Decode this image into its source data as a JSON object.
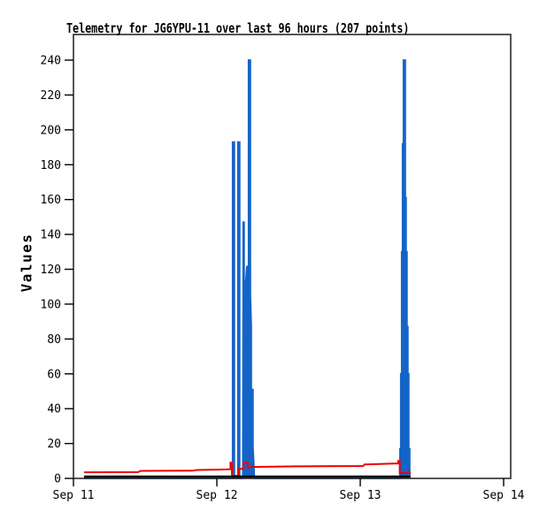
{
  "title": "Telemetry for JG6YPU-11 over last 96 hours (207 points)",
  "colors": {
    "background": "#ffffff",
    "frame": "#2b2b2b",
    "tick": "#000000",
    "series_blue": "#1464C8",
    "series_red": "#EE0000",
    "series_black": "#000000"
  },
  "chart_data": {
    "type": "line",
    "title": "Telemetry for JG6YPU-11 over last 96 hours (207 points)",
    "xlabel": "",
    "ylabel": "Values",
    "ylim": [
      0,
      240
    ],
    "y_ticks": [
      0,
      20,
      40,
      60,
      80,
      100,
      120,
      140,
      160,
      180,
      200,
      220,
      240
    ],
    "x_ticks": [
      {
        "label": "Sep 11",
        "day": 0
      },
      {
        "label": "Sep 12",
        "day": 1
      },
      {
        "label": "Sep 13",
        "day": 2
      },
      {
        "label": "Sep 14",
        "day": 3
      }
    ],
    "x_domain_days": [
      0,
      3.049
    ],
    "x_unit": "days since Sep 11 (date tick marks)",
    "grid": false,
    "legend": "none",
    "series": [
      {
        "name": "telemetry-spikes-blue",
        "color": "#1464C8",
        "width": 1.8,
        "fill": true,
        "points": [
          [
            0.074,
            0
          ],
          [
            1.104,
            0
          ],
          [
            1.11,
            0
          ],
          [
            1.11,
            193
          ],
          [
            1.122,
            193
          ],
          [
            1.122,
            0
          ],
          [
            1.147,
            0
          ],
          [
            1.147,
            193
          ],
          [
            1.159,
            193
          ],
          [
            1.159,
            0
          ],
          [
            1.181,
            0
          ],
          [
            1.184,
            147
          ],
          [
            1.19,
            147
          ],
          [
            1.19,
            113
          ],
          [
            1.196,
            113
          ],
          [
            1.196,
            87
          ],
          [
            1.202,
            113
          ],
          [
            1.209,
            122
          ],
          [
            1.215,
            113
          ],
          [
            1.221,
            113
          ],
          [
            1.221,
            240
          ],
          [
            1.234,
            240
          ],
          [
            1.234,
            105
          ],
          [
            1.24,
            87
          ],
          [
            1.24,
            51
          ],
          [
            1.252,
            51
          ],
          [
            1.252,
            18
          ],
          [
            1.258,
            8
          ],
          [
            1.262,
            0
          ],
          [
            2.271,
            0
          ],
          [
            2.277,
            0
          ],
          [
            2.277,
            17
          ],
          [
            2.283,
            17
          ],
          [
            2.283,
            60
          ],
          [
            2.289,
            60
          ],
          [
            2.289,
            130
          ],
          [
            2.295,
            130
          ],
          [
            2.295,
            192
          ],
          [
            2.301,
            192
          ],
          [
            2.301,
            240
          ],
          [
            2.314,
            240
          ],
          [
            2.314,
            161
          ],
          [
            2.32,
            161
          ],
          [
            2.32,
            130
          ],
          [
            2.326,
            130
          ],
          [
            2.326,
            87
          ],
          [
            2.332,
            87
          ],
          [
            2.332,
            60
          ],
          [
            2.338,
            60
          ],
          [
            2.338,
            17
          ],
          [
            2.345,
            17
          ],
          [
            2.345,
            0
          ]
        ]
      },
      {
        "name": "telemetry-red",
        "color": "#EE0000",
        "width": 2,
        "fill": false,
        "points": [
          [
            0.074,
            3.5
          ],
          [
            0.45,
            3.6
          ],
          [
            0.47,
            4.3
          ],
          [
            0.83,
            4.4
          ],
          [
            0.86,
            4.8
          ],
          [
            1.07,
            5.2
          ],
          [
            1.095,
            5.3
          ],
          [
            1.095,
            9.0
          ],
          [
            1.105,
            9.0
          ],
          [
            1.105,
            1.5
          ],
          [
            1.15,
            1.5
          ],
          [
            1.15,
            5.5
          ],
          [
            1.185,
            5.5
          ],
          [
            1.185,
            9.0
          ],
          [
            1.215,
            9.0
          ],
          [
            1.215,
            6.3
          ],
          [
            1.27,
            6.6
          ],
          [
            1.55,
            6.9
          ],
          [
            2.02,
            7.1
          ],
          [
            2.03,
            8.0
          ],
          [
            2.25,
            8.6
          ],
          [
            2.265,
            8.6
          ],
          [
            2.265,
            10.0
          ],
          [
            2.275,
            10.0
          ],
          [
            2.275,
            3.0
          ],
          [
            2.33,
            3.0
          ],
          [
            2.34,
            3.8
          ],
          [
            2.35,
            2.5
          ]
        ]
      },
      {
        "name": "telemetry-black",
        "color": "#000000",
        "width": 2.5,
        "fill": false,
        "points": [
          [
            0.074,
            1.0
          ],
          [
            2.35,
            1.0
          ]
        ]
      }
    ]
  }
}
